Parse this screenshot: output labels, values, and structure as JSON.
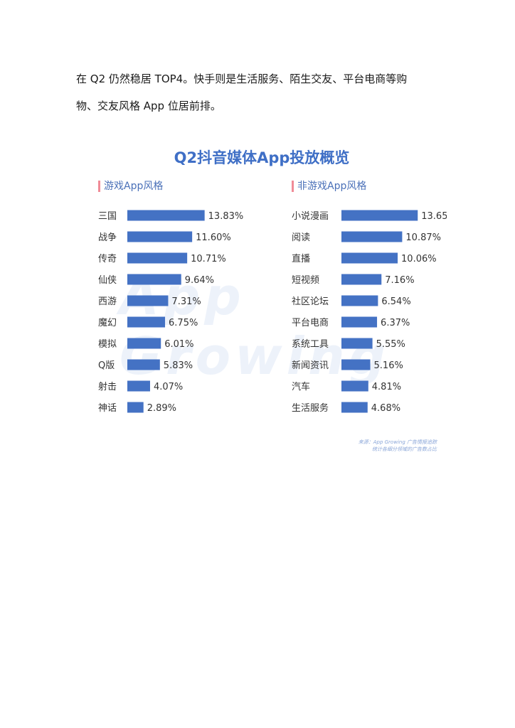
{
  "paragraph": {
    "line1": "在 Q2 仍然稳居 TOP4。快手则是生活服务、陌生交友、平台电商等购",
    "line2": "物、交友风格 App 位居前排。"
  },
  "figure": {
    "watermark": "App Growing",
    "source_line1": "来源：App Growing 广告情报追踪",
    "source_line2": "统计各细分领域的广告数占比"
  },
  "chart_data": [
    {
      "type": "bar",
      "orientation": "horizontal",
      "title": "Q2抖音媒体App投放概览",
      "panel_title": "游戏App风格",
      "categories": [
        "三国",
        "战争",
        "传奇",
        "仙侠",
        "西游",
        "魔幻",
        "模拟",
        "Q版",
        "射击",
        "神话"
      ],
      "values": [
        13.83,
        11.6,
        10.71,
        9.64,
        7.31,
        6.75,
        6.01,
        5.83,
        4.07,
        2.89
      ],
      "value_labels": [
        "13.83%",
        "11.60%",
        "10.71%",
        "9.64%",
        "7.31%",
        "6.75%",
        "6.01%",
        "5.83%",
        "4.07%",
        "2.89%"
      ],
      "unit": "%",
      "bar_color": "#4472c4"
    },
    {
      "type": "bar",
      "orientation": "horizontal",
      "panel_title": "非游戏App风格",
      "categories": [
        "小说漫画",
        "阅读",
        "直播",
        "短视频",
        "社区论坛",
        "平台电商",
        "系统工具",
        "新闻资讯",
        "汽车",
        "生活服务"
      ],
      "values": [
        13.65,
        10.87,
        10.06,
        7.16,
        6.54,
        6.37,
        5.55,
        5.16,
        4.81,
        4.68
      ],
      "value_labels": [
        "13.65%",
        "10.87%",
        "10.06%",
        "7.16%",
        "6.54%",
        "6.37%",
        "5.55%",
        "5.16%",
        "4.81%",
        "4.68%"
      ],
      "unit": "%",
      "bar_color": "#4472c4"
    }
  ]
}
